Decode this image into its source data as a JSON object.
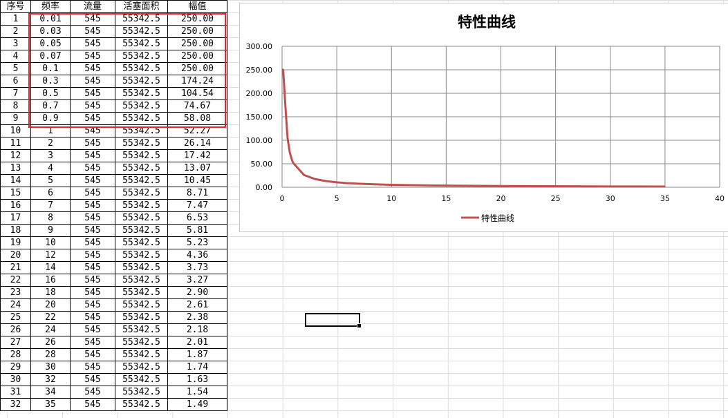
{
  "table": {
    "headers": [
      "序号",
      "频率",
      "流量",
      "活塞面积",
      "幅值"
    ],
    "rows": [
      [
        "1",
        "0.01",
        "545",
        "55342.5",
        "250.00"
      ],
      [
        "2",
        "0.03",
        "545",
        "55342.5",
        "250.00"
      ],
      [
        "3",
        "0.05",
        "545",
        "55342.5",
        "250.00"
      ],
      [
        "4",
        "0.07",
        "545",
        "55342.5",
        "250.00"
      ],
      [
        "5",
        "0.1",
        "545",
        "55342.5",
        "250.00"
      ],
      [
        "6",
        "0.3",
        "545",
        "55342.5",
        "174.24"
      ],
      [
        "7",
        "0.5",
        "545",
        "55342.5",
        "104.54"
      ],
      [
        "8",
        "0.7",
        "545",
        "55342.5",
        "74.67"
      ],
      [
        "9",
        "0.9",
        "545",
        "55342.5",
        "58.08"
      ],
      [
        "10",
        "1",
        "545",
        "55342.5",
        "52.27"
      ],
      [
        "11",
        "2",
        "545",
        "55342.5",
        "26.14"
      ],
      [
        "12",
        "3",
        "545",
        "55342.5",
        "17.42"
      ],
      [
        "13",
        "4",
        "545",
        "55342.5",
        "13.07"
      ],
      [
        "14",
        "5",
        "545",
        "55342.5",
        "10.45"
      ],
      [
        "15",
        "6",
        "545",
        "55342.5",
        "8.71"
      ],
      [
        "16",
        "7",
        "545",
        "55342.5",
        "7.47"
      ],
      [
        "17",
        "8",
        "545",
        "55342.5",
        "6.53"
      ],
      [
        "18",
        "9",
        "545",
        "55342.5",
        "5.81"
      ],
      [
        "19",
        "10",
        "545",
        "55342.5",
        "5.23"
      ],
      [
        "20",
        "12",
        "545",
        "55342.5",
        "4.36"
      ],
      [
        "21",
        "14",
        "545",
        "55342.5",
        "3.73"
      ],
      [
        "22",
        "16",
        "545",
        "55342.5",
        "3.27"
      ],
      [
        "23",
        "18",
        "545",
        "55342.5",
        "2.90"
      ],
      [
        "24",
        "20",
        "545",
        "55342.5",
        "2.61"
      ],
      [
        "25",
        "22",
        "545",
        "55342.5",
        "2.38"
      ],
      [
        "26",
        "24",
        "545",
        "55342.5",
        "2.18"
      ],
      [
        "27",
        "26",
        "545",
        "55342.5",
        "2.01"
      ],
      [
        "28",
        "28",
        "545",
        "55342.5",
        "1.87"
      ],
      [
        "29",
        "30",
        "545",
        "55342.5",
        "1.74"
      ],
      [
        "30",
        "32",
        "545",
        "55342.5",
        "1.63"
      ],
      [
        "31",
        "34",
        "545",
        "55342.5",
        "1.54"
      ],
      [
        "32",
        "35",
        "545",
        "55342.5",
        "1.49"
      ]
    ]
  },
  "highlight_color": "#e0262b",
  "chart_data": {
    "type": "line",
    "title": "特性曲线",
    "xlabel": "",
    "ylabel": "",
    "xlim": [
      0,
      40
    ],
    "ylim": [
      0,
      300
    ],
    "xticks": [
      "0",
      "5",
      "10",
      "15",
      "20",
      "25",
      "30",
      "35",
      "40"
    ],
    "yticks": [
      "0.00",
      "50.00",
      "100.00",
      "150.00",
      "200.00",
      "250.00",
      "300.00"
    ],
    "grid": true,
    "legend_position": "bottom",
    "series": [
      {
        "name": "特性曲线",
        "color": "#c0504d",
        "x": [
          0.01,
          0.03,
          0.05,
          0.07,
          0.1,
          0.3,
          0.5,
          0.7,
          0.9,
          1,
          2,
          3,
          4,
          5,
          6,
          7,
          8,
          9,
          10,
          12,
          14,
          16,
          18,
          20,
          22,
          24,
          26,
          28,
          30,
          32,
          34,
          35
        ],
        "y": [
          250,
          250,
          250,
          250,
          250,
          174.24,
          104.54,
          74.67,
          58.08,
          52.27,
          26.14,
          17.42,
          13.07,
          10.45,
          8.71,
          7.47,
          6.53,
          5.81,
          5.23,
          4.36,
          3.73,
          3.27,
          2.9,
          2.61,
          2.38,
          2.18,
          2.01,
          1.87,
          1.74,
          1.63,
          1.54,
          1.49
        ]
      }
    ]
  }
}
